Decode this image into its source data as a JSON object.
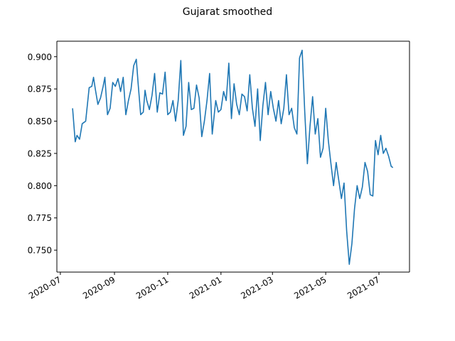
{
  "chart_data": {
    "type": "line",
    "title": "Gujarat smoothed",
    "xlabel": "",
    "ylabel": "",
    "x_type": "date",
    "xlim": [
      "2020-06-27",
      "2021-08-05"
    ],
    "ylim": [
      0.733,
      0.912
    ],
    "x_ticks": [
      "2020-07-01",
      "2020-09-01",
      "2020-11-01",
      "2021-01-01",
      "2021-03-01",
      "2021-05-01",
      "2021-07-01"
    ],
    "x_tick_labels": [
      "2020-07",
      "2020-09",
      "2020-11",
      "2021-01",
      "2021-03",
      "2021-05",
      "2021-07"
    ],
    "y_ticks": [
      0.75,
      0.775,
      0.8,
      0.825,
      0.85,
      0.875,
      0.9
    ],
    "y_tick_labels": [
      "0.750",
      "0.775",
      "0.800",
      "0.825",
      "0.850",
      "0.875",
      "0.900"
    ],
    "grid": false,
    "legend": false,
    "series": [
      {
        "color": "#1f77b4",
        "x": [
          "2020-07-15",
          "2020-07-18",
          "2020-07-20",
          "2020-07-23",
          "2020-07-26",
          "2020-07-30",
          "2020-08-03",
          "2020-08-06",
          "2020-08-08",
          "2020-08-10",
          "2020-08-13",
          "2020-08-16",
          "2020-08-19",
          "2020-08-21",
          "2020-08-24",
          "2020-08-27",
          "2020-08-30",
          "2020-09-02",
          "2020-09-05",
          "2020-09-08",
          "2020-09-11",
          "2020-09-14",
          "2020-09-17",
          "2020-09-20",
          "2020-09-23",
          "2020-09-26",
          "2020-09-28",
          "2020-10-01",
          "2020-10-04",
          "2020-10-06",
          "2020-10-08",
          "2020-10-11",
          "2020-10-14",
          "2020-10-17",
          "2020-10-20",
          "2020-10-23",
          "2020-10-26",
          "2020-10-29",
          "2020-11-01",
          "2020-11-04",
          "2020-11-07",
          "2020-11-10",
          "2020-11-13",
          "2020-11-16",
          "2020-11-19",
          "2020-11-22",
          "2020-11-25",
          "2020-11-28",
          "2020-12-01",
          "2020-12-04",
          "2020-12-07",
          "2020-12-10",
          "2020-12-13",
          "2020-12-16",
          "2020-12-19",
          "2020-12-22",
          "2020-12-26",
          "2020-12-29",
          "2021-01-01",
          "2021-01-04",
          "2021-01-07",
          "2021-01-10",
          "2021-01-13",
          "2021-01-16",
          "2021-01-19",
          "2021-01-22",
          "2021-01-25",
          "2021-01-28",
          "2021-01-31",
          "2021-02-03",
          "2021-02-06",
          "2021-02-09",
          "2021-02-12",
          "2021-02-15",
          "2021-02-18",
          "2021-02-21",
          "2021-02-24",
          "2021-02-27",
          "2021-03-02",
          "2021-03-05",
          "2021-03-08",
          "2021-03-11",
          "2021-03-14",
          "2021-03-17",
          "2021-03-20",
          "2021-03-23",
          "2021-03-26",
          "2021-03-29",
          "2021-04-01",
          "2021-04-04",
          "2021-04-07",
          "2021-04-10",
          "2021-04-13",
          "2021-04-16",
          "2021-04-19",
          "2021-04-22",
          "2021-04-25",
          "2021-04-28",
          "2021-05-01",
          "2021-05-04",
          "2021-05-07",
          "2021-05-10",
          "2021-05-13",
          "2021-05-16",
          "2021-05-19",
          "2021-05-22",
          "2021-05-25",
          "2021-05-28",
          "2021-05-31",
          "2021-06-03",
          "2021-06-06",
          "2021-06-09",
          "2021-06-12",
          "2021-06-15",
          "2021-06-18",
          "2021-06-21",
          "2021-06-24",
          "2021-06-27",
          "2021-06-30",
          "2021-07-03",
          "2021-07-06",
          "2021-07-09",
          "2021-07-12",
          "2021-07-15",
          "2021-07-17"
        ],
        "y": [
          0.86,
          0.834,
          0.839,
          0.836,
          0.848,
          0.85,
          0.876,
          0.877,
          0.884,
          0.875,
          0.863,
          0.868,
          0.877,
          0.884,
          0.855,
          0.86,
          0.88,
          0.877,
          0.883,
          0.873,
          0.884,
          0.855,
          0.866,
          0.875,
          0.893,
          0.898,
          0.88,
          0.855,
          0.857,
          0.874,
          0.866,
          0.859,
          0.87,
          0.887,
          0.857,
          0.872,
          0.871,
          0.888,
          0.855,
          0.857,
          0.866,
          0.85,
          0.866,
          0.897,
          0.839,
          0.846,
          0.88,
          0.859,
          0.86,
          0.878,
          0.868,
          0.838,
          0.85,
          0.866,
          0.887,
          0.84,
          0.866,
          0.857,
          0.859,
          0.873,
          0.866,
          0.895,
          0.852,
          0.879,
          0.863,
          0.855,
          0.871,
          0.869,
          0.858,
          0.886,
          0.86,
          0.846,
          0.875,
          0.835,
          0.862,
          0.88,
          0.855,
          0.873,
          0.86,
          0.85,
          0.866,
          0.848,
          0.86,
          0.886,
          0.855,
          0.86,
          0.845,
          0.84,
          0.899,
          0.905,
          0.857,
          0.817,
          0.846,
          0.869,
          0.84,
          0.852,
          0.822,
          0.829,
          0.86,
          0.835,
          0.817,
          0.8,
          0.818,
          0.804,
          0.79,
          0.802,
          0.765,
          0.739,
          0.755,
          0.782,
          0.8,
          0.79,
          0.799,
          0.818,
          0.811,
          0.793,
          0.792,
          0.835,
          0.824,
          0.839,
          0.825,
          0.829,
          0.823,
          0.815,
          0.814
        ]
      }
    ]
  }
}
